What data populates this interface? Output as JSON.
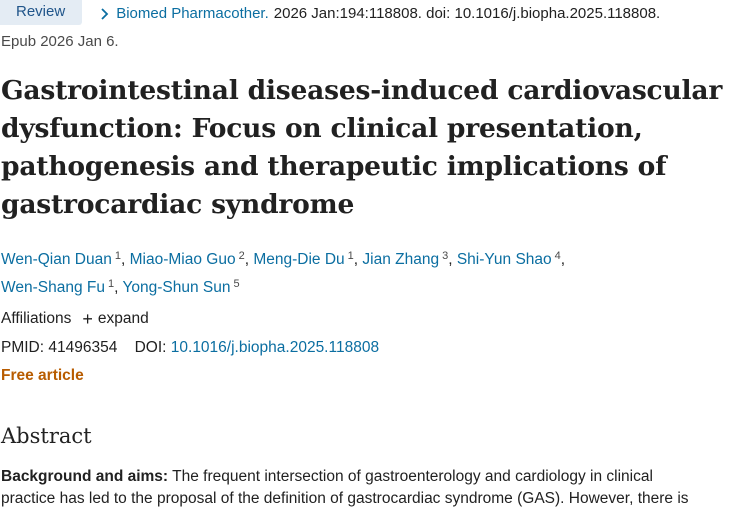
{
  "header": {
    "badge": "Review",
    "journal": "Biomed Pharmacother.",
    "citation": "2026 Jan:194:118808. doi: 10.1016/j.biopha.2025.118808.",
    "epub": "Epub 2026 Jan 6."
  },
  "article": {
    "title": "Gastrointestinal diseases-induced cardiovascular dysfunction: Focus on clinical presentation, pathogenesis and therapeutic implications of gastrocardiac syndrome",
    "authors": [
      {
        "name": "Wen-Qian Duan",
        "aff": "1"
      },
      {
        "name": "Miao-Miao Guo",
        "aff": "2"
      },
      {
        "name": "Meng-Die Du",
        "aff": "1"
      },
      {
        "name": "Jian Zhang",
        "aff": "3"
      },
      {
        "name": "Shi-Yun Shao",
        "aff": "4"
      },
      {
        "name": "Wen-Shang Fu",
        "aff": "1"
      },
      {
        "name": "Yong-Shun Sun",
        "aff": "5"
      }
    ],
    "affiliations_label": "Affiliations",
    "expand_label": "expand",
    "pmid_label": "PMID:",
    "pmid": "41496354",
    "doi_label": "DOI:",
    "doi": "10.1016/j.biopha.2025.118808",
    "free_label": "Free article"
  },
  "abstract": {
    "heading": "Abstract",
    "lead": "Background and aims:",
    "line1": "The frequent intersection of gastroenterology and cardiology in clinical",
    "line2": "practice has led to the proposal of the definition of gastrocardiac syndrome (GAS). However, there is"
  },
  "icons": {
    "journal_chevron": "chevron-right-icon",
    "expand_plus": "plus-icon"
  },
  "colors": {
    "link": "#0b6ea1",
    "badge_bg": "#e4ecf4",
    "free_article": "#b85c00"
  }
}
